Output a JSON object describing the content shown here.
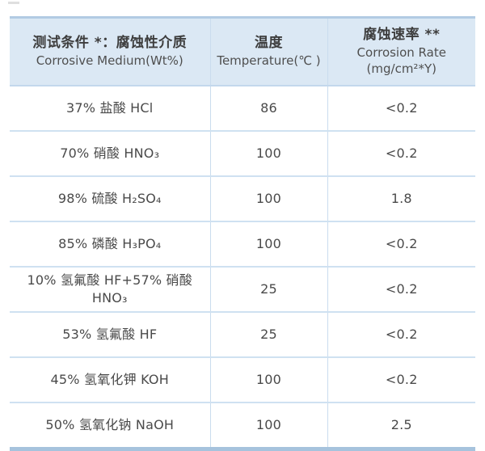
{
  "colors": {
    "page_bg": "#ffffff",
    "header_bg": "#dbe8f4",
    "header_top_border": "#b2cbe3",
    "row_divider": "#cfe1f1",
    "column_divider": "#c9dcee",
    "bottom_border": "#a6c3dd",
    "header_text": "#3d3d3d",
    "body_text": "#4a4a4a"
  },
  "table": {
    "header": {
      "medium_zh": "测试条件 *：腐蚀性介质",
      "medium_en": "Corrosive Medium(Wt%)",
      "temperature_zh": "温度",
      "temperature_en": "Temperature(℃ )",
      "rate_zh": "腐蚀速率 **",
      "rate_en": "Corrosion Rate",
      "rate_unit": "(mg/cm²*Y)"
    },
    "rows": [
      {
        "medium": "37% 盐酸 HCl",
        "temperature": "86",
        "rate": "<0.2"
      },
      {
        "medium": "70% 硝酸 HNO₃",
        "temperature": "100",
        "rate": "<0.2"
      },
      {
        "medium": "98% 硫酸 H₂SO₄",
        "temperature": "100",
        "rate": "1.8"
      },
      {
        "medium": "85% 磷酸 H₃PO₄",
        "temperature": "100",
        "rate": "<0.2"
      },
      {
        "medium": "10% 氢氟酸 HF+57% 硝酸\nHNO₃",
        "temperature": "25",
        "rate": "<0.2"
      },
      {
        "medium": "53% 氢氟酸 HF",
        "temperature": "25",
        "rate": "<0.2"
      },
      {
        "medium": "45% 氢氧化钾 KOH",
        "temperature": "100",
        "rate": "<0.2"
      },
      {
        "medium": "50% 氢氧化钠 NaOH",
        "temperature": "100",
        "rate": "2.5"
      }
    ]
  }
}
